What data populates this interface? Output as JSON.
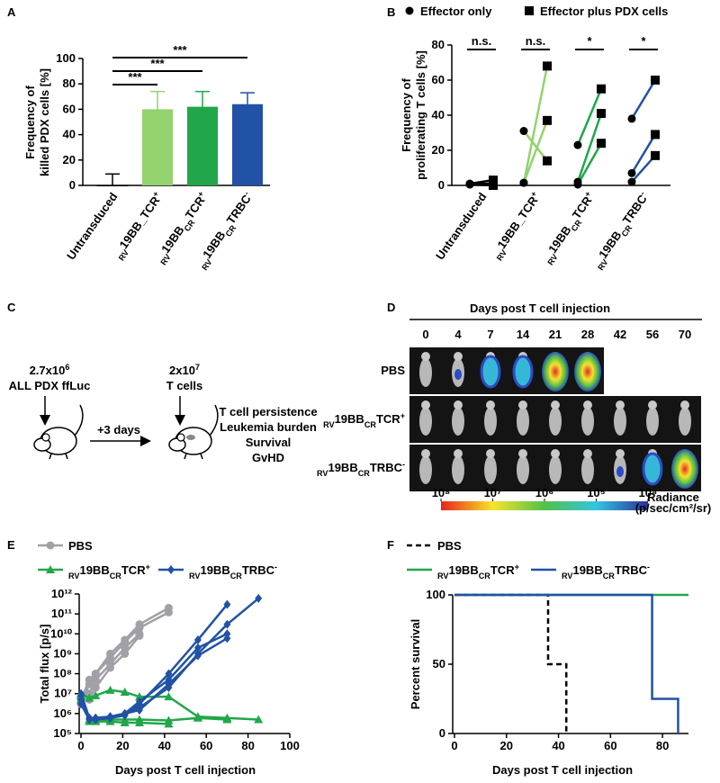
{
  "chart_data": [
    {
      "type": "bar",
      "panel": "A",
      "ylabel": [
        "Frequency of",
        "killed PDX cells [%]"
      ],
      "categories": [
        "Untransduced",
        [
          {
            "text": "RV",
            "style": "sub"
          },
          {
            "text": "19BB_TCR"
          },
          {
            "text": "+",
            "style": "sup"
          }
        ],
        [
          {
            "text": "RV",
            "style": "sub"
          },
          {
            "text": "19BB"
          },
          {
            "text": "CR",
            "style": "sub"
          },
          {
            "text": "TCR"
          },
          {
            "text": "+",
            "style": "sup"
          }
        ],
        [
          {
            "text": "RV",
            "style": "sub"
          },
          {
            "text": "19BB"
          },
          {
            "text": "CR",
            "style": "sub"
          },
          {
            "text": "TRBC"
          },
          {
            "text": "-",
            "style": "sup"
          }
        ]
      ],
      "values": [
        0,
        60,
        62,
        64
      ],
      "errors": [
        9,
        14,
        12,
        9
      ],
      "colors": [
        "#ffffff",
        "#92d36e",
        "#21a74a",
        "#2152a5"
      ],
      "ylim": [
        0,
        100
      ],
      "yticks": [
        0,
        20,
        40,
        60,
        80,
        100
      ],
      "significance": [
        {
          "from": 0,
          "to": 1,
          "label": "***"
        },
        {
          "from": 0,
          "to": 2,
          "label": "***"
        },
        {
          "from": 0,
          "to": 3,
          "label": "***"
        }
      ]
    },
    {
      "type": "paired",
      "panel": "B",
      "ylabel": [
        "Frequency of",
        "proliferating T cells [%]"
      ],
      "categories": [
        "Untransduced",
        [
          {
            "text": "RV",
            "style": "sub"
          },
          {
            "text": "19BB_TCR"
          },
          {
            "text": "+",
            "style": "sup"
          }
        ],
        [
          {
            "text": "RV",
            "style": "sub"
          },
          {
            "text": "19BB"
          },
          {
            "text": "CR",
            "style": "sub"
          },
          {
            "text": "TCR"
          },
          {
            "text": "+",
            "style": "sup"
          }
        ],
        [
          {
            "text": "RV",
            "style": "sub"
          },
          {
            "text": "19BB"
          },
          {
            "text": "CR",
            "style": "sub"
          },
          {
            "text": "TRBC"
          },
          {
            "text": "-",
            "style": "sup"
          }
        ]
      ],
      "category_colors": [
        "#000000",
        "#92d36e",
        "#21a74a",
        "#2152a5"
      ],
      "series": [
        {
          "name": "Effector only",
          "marker": "circle",
          "color": "#000000",
          "values": [
            [
              0.5,
              0.8,
              1
            ],
            [
              31,
              1.5,
              1.5
            ],
            [
              23,
              2,
              0.5
            ],
            [
              38,
              7,
              2
            ]
          ]
        },
        {
          "name": "Effector plus PDX cells",
          "marker": "square",
          "color": "#000000",
          "values": [
            [
              0,
              1,
              3
            ],
            [
              14,
              68,
              37
            ],
            [
              55,
              41,
              24
            ],
            [
              60,
              29,
              17
            ]
          ]
        }
      ],
      "ylim": [
        0,
        80
      ],
      "yticks": [
        0,
        20,
        40,
        60,
        80
      ],
      "significance": [
        "n.s.",
        "n.s.",
        "*",
        "*"
      ]
    },
    {
      "type": "line",
      "panel": "E",
      "log_y": true,
      "ylabel": "Total flux [p/s]",
      "xlabel": "Days post T cell injection",
      "xlim": [
        0,
        100
      ],
      "xticks": [
        0,
        20,
        40,
        60,
        80,
        100
      ],
      "ylim": [
        100000.0,
        1000000000000.0
      ],
      "yticks": [
        {
          "value": 100000.0,
          "label": "10⁵"
        },
        {
          "value": 1000000.0,
          "label": "10⁶"
        },
        {
          "value": 10000000.0,
          "label": "10⁷"
        },
        {
          "value": 100000000.0,
          "label": "10⁸"
        },
        {
          "value": 1000000000.0,
          "label": "10⁹"
        },
        {
          "value": 10000000000.0,
          "label": "10¹⁰"
        },
        {
          "value": 100000000000.0,
          "label": "10¹¹"
        },
        {
          "value": 1000000000000.0,
          "label": "10¹²"
        }
      ],
      "series": [
        {
          "name": "PBS",
          "color": "#a0a0a6",
          "marker": "circle",
          "mice": [
            {
              "x": [
                0,
                4,
                7,
                14,
                21,
                28,
                42
              ],
              "values": [
                5000000.0,
                50000000.0,
                100000000.0,
                1000000000.0,
                5000000000.0,
                30000000000.0,
                200000000000.0
              ]
            },
            {
              "x": [
                0,
                4,
                7,
                14,
                21,
                28,
                42
              ],
              "values": [
                3000000.0,
                30000000.0,
                100000000.0,
                600000000.0,
                4000000000.0,
                20000000000.0,
                120000000000.0
              ]
            },
            {
              "x": [
                0,
                4,
                7,
                14,
                21,
                28
              ],
              "values": [
                4000000.0,
                10000000.0,
                50000000.0,
                300000000.0,
                2000000000.0,
                10000000000.0
              ]
            },
            {
              "x": [
                0,
                4,
                7,
                14,
                21,
                28
              ],
              "values": [
                6000000.0,
                5000000.0,
                20000000.0,
                200000000.0,
                1000000000.0,
                8000000000.0
              ]
            }
          ]
        },
        {
          "name": [
            {
              "text": "RV",
              "style": "sub"
            },
            {
              "text": "19BB"
            },
            {
              "text": "CR",
              "style": "sub"
            },
            {
              "text": "TCR"
            },
            {
              "text": "+",
              "style": "sup"
            }
          ],
          "color": "#21a74a",
          "marker": "triangle",
          "mice": [
            {
              "x": [
                0,
                4,
                7,
                14,
                21,
                28,
                42,
                56,
                70,
                85
              ],
              "values": [
                10000000.0,
                6000000.0,
                8000000.0,
                15000000.0,
                12000000.0,
                7000000.0,
                7000000.0,
                700000.0,
                600000.0,
                500000.0
              ]
            },
            {
              "x": [
                0,
                4,
                7,
                14,
                21,
                28,
                42,
                56,
                70
              ],
              "values": [
                8000000.0,
                500000.0,
                500000.0,
                500000.0,
                500000.0,
                500000.0,
                450000.0,
                600000.0,
                500000.0
              ]
            },
            {
              "x": [
                0,
                4,
                7,
                14,
                21,
                28,
                42
              ],
              "values": [
                5000000.0,
                400000.0,
                400000.0,
                400000.0,
                350000.0,
                350000.0,
                300000.0
              ]
            }
          ]
        },
        {
          "name": [
            {
              "text": "RV",
              "style": "sub"
            },
            {
              "text": "19BB"
            },
            {
              "text": "CR",
              "style": "sub"
            },
            {
              "text": "TRBC"
            },
            {
              "text": "-",
              "style": "sup"
            }
          ],
          "color": "#2152a5",
          "marker": "diamond",
          "mice": [
            {
              "x": [
                0,
                4,
                7,
                14,
                21,
                28,
                42,
                56,
                70,
                85
              ],
              "values": [
                10000000.0,
                600000.0,
                600000.0,
                700000.0,
                1000000.0,
                2000000.0,
                20000000.0,
                1000000000.0,
                30000000000.0,
                600000000000.0
              ]
            },
            {
              "x": [
                0,
                4,
                7,
                14,
                21,
                28,
                42,
                56,
                70
              ],
              "values": [
                8000000.0,
                500000.0,
                500000.0,
                600000.0,
                800000.0,
                3000000.0,
                100000000.0,
                5000000000.0,
                300000000000.0
              ]
            },
            {
              "x": [
                0,
                4,
                7,
                14,
                21,
                28,
                42,
                56,
                70
              ],
              "values": [
                5000000.0,
                600000.0,
                600000.0,
                700000.0,
                1000000.0,
                4000000.0,
                50000000.0,
                2000000000.0,
                10000000000.0
              ]
            },
            {
              "x": [
                0,
                4,
                7,
                14,
                21,
                28,
                42,
                56,
                70
              ],
              "values": [
                3000000.0,
                500000.0,
                500000.0,
                600000.0,
                1000000.0,
                1500000.0,
                30000000.0,
                800000000.0,
                6000000000.0
              ]
            }
          ]
        }
      ]
    },
    {
      "type": "step",
      "panel": "F",
      "ylabel": "Percent survival",
      "xlabel": "Days post T cell injection",
      "xlim": [
        0,
        90
      ],
      "xticks": [
        0,
        20,
        40,
        60,
        80
      ],
      "ylim": [
        0,
        100
      ],
      "yticks": [
        0,
        50,
        100
      ],
      "series": [
        {
          "name": "PBS",
          "color": "#000000",
          "dash": true,
          "x": [
            0,
            36,
            43
          ],
          "values": [
            100,
            50,
            0
          ]
        },
        {
          "name": [
            {
              "text": "RV",
              "style": "sub"
            },
            {
              "text": "19BB"
            },
            {
              "text": "CR",
              "style": "sub"
            },
            {
              "text": "TCR"
            },
            {
              "text": "+",
              "style": "sup"
            }
          ],
          "color": "#21a74a",
          "dash": false,
          "x": [
            0,
            90
          ],
          "values": [
            100,
            100
          ]
        },
        {
          "name": [
            {
              "text": "RV",
              "style": "sub"
            },
            {
              "text": "19BB"
            },
            {
              "text": "CR",
              "style": "sub"
            },
            {
              "text": "TRBC"
            },
            {
              "text": "-",
              "style": "sup"
            }
          ],
          "color": "#2152a5",
          "dash": false,
          "x": [
            0,
            76,
            86
          ],
          "values": [
            100,
            25,
            0
          ]
        }
      ]
    }
  ],
  "diagram": {
    "panel": "C",
    "injections": [
      {
        "dose": [
          {
            "text": "2.7x10"
          },
          {
            "text": "6",
            "style": "sup"
          }
        ],
        "label": "ALL PDX ffLuc"
      },
      {
        "dose": [
          {
            "text": "2x10"
          },
          {
            "text": "7",
            "style": "sup"
          }
        ],
        "label": "T cells"
      }
    ],
    "interval": "+3 days",
    "readouts": [
      "T cell persistence",
      "Leukemia burden",
      "Survival",
      "GvHD"
    ]
  },
  "imaging": {
    "panel": "D",
    "title": "Days post T cell injection",
    "days": [
      "0",
      "4",
      "7",
      "14",
      "21",
      "28",
      "42",
      "56",
      "70"
    ],
    "rows": [
      "PBS",
      [
        {
          "text": "RV",
          "style": "sub"
        },
        {
          "text": "19BB"
        },
        {
          "text": "CR",
          "style": "sub"
        },
        {
          "text": "TCR"
        },
        {
          "text": "+",
          "style": "sup"
        }
      ],
      [
        {
          "text": "RV",
          "style": "sub"
        },
        {
          "text": "19BB"
        },
        {
          "text": "CR",
          "style": "sub"
        },
        {
          "text": "TRBC"
        },
        {
          "text": "-",
          "style": "sup"
        }
      ]
    ],
    "colorbar": {
      "lim": [
        100000000.0,
        10000.0
      ],
      "ticks": [
        {
          "value": 100000000.0,
          "label": "10⁸"
        },
        {
          "value": 10000000.0,
          "label": "10⁷"
        },
        {
          "value": 1000000.0,
          "label": "10⁶"
        },
        {
          "value": 100000.0,
          "label": "10⁵"
        },
        {
          "value": 10000.0,
          "label": "10⁴"
        }
      ],
      "title": "Radiance",
      "unit": "(p/sec/cm²/sr)"
    }
  }
}
